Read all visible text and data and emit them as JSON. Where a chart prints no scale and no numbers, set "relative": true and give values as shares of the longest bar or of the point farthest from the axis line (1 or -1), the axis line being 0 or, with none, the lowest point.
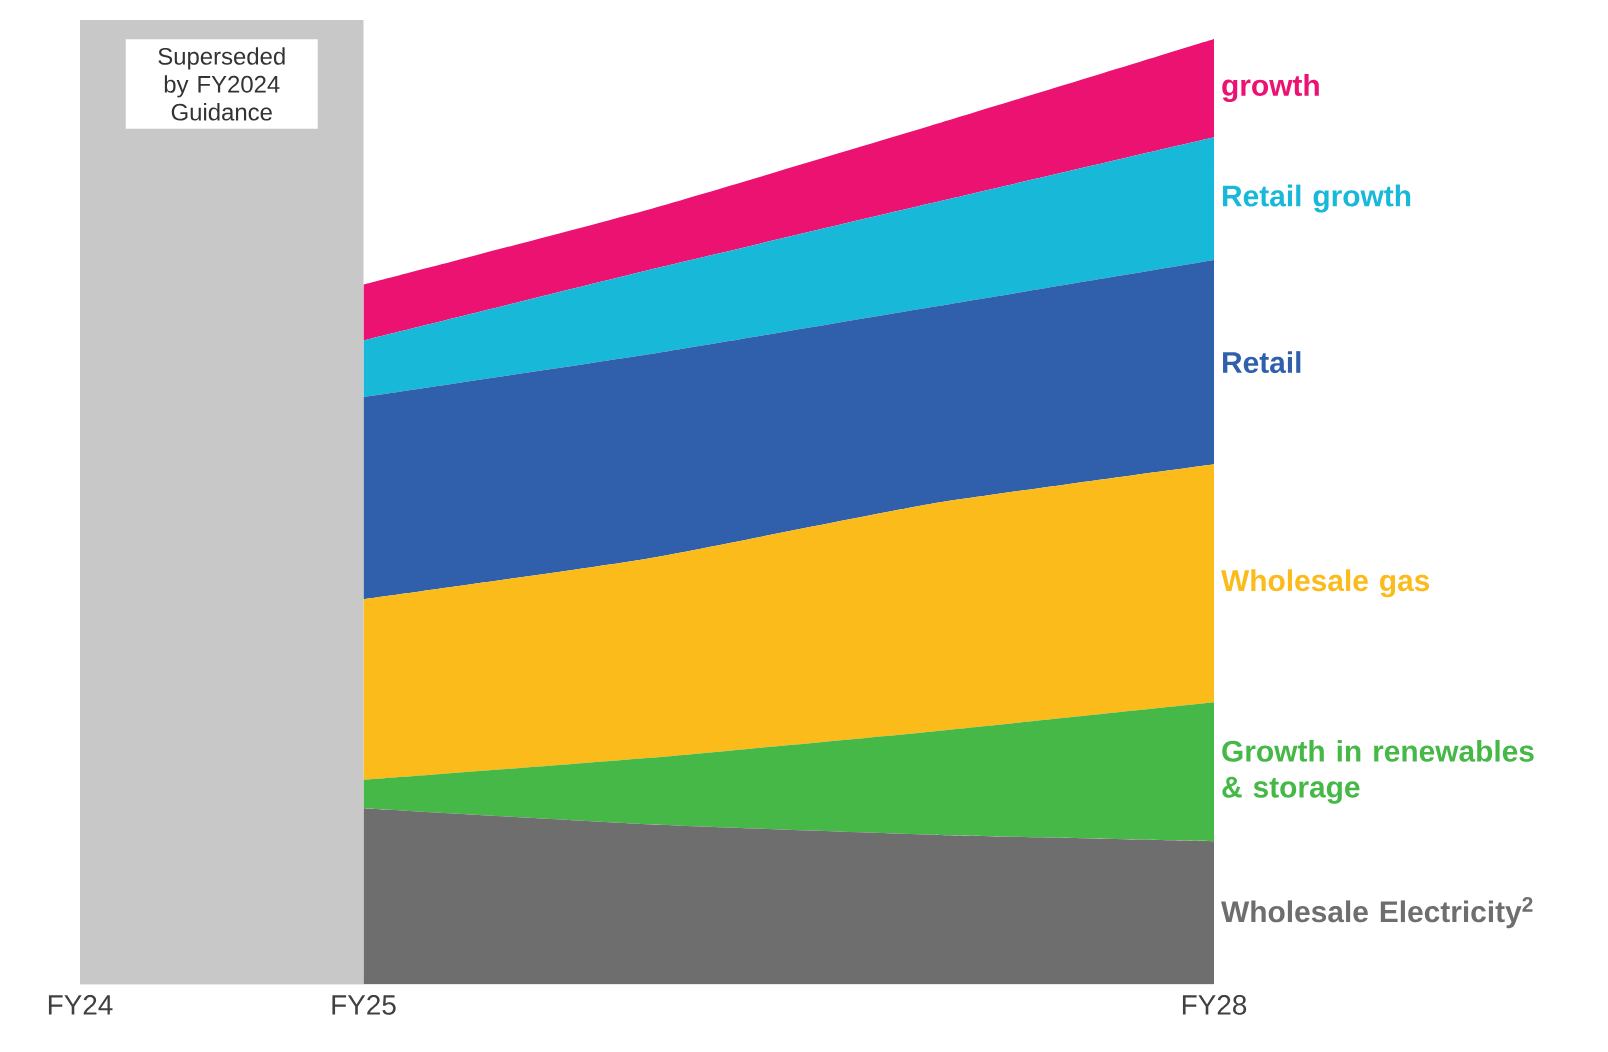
{
  "chart_data": {
    "type": "area",
    "stacked": true,
    "relative": true,
    "categories": [
      "FY24",
      "FY25",
      null,
      null,
      "FY28"
    ],
    "series": [
      {
        "name": "Wholesale Electricity$^{2}$",
        "color": "#6e6e6e",
        "values": [
          null,
          0.186,
          0.169,
          0.158,
          0.151
        ]
      },
      {
        "name": "Growth in renewables & storage",
        "color": "#46b848",
        "values": [
          null,
          0.03,
          0.07,
          0.109,
          0.147
        ]
      },
      {
        "name": "Wholesale gas",
        "color": "#fbbb1a",
        "values": [
          null,
          0.191,
          0.211,
          0.241,
          0.252
        ]
      },
      {
        "name": "Retail",
        "color": "#3060ab",
        "values": [
          null,
          0.214,
          0.216,
          0.208,
          0.216
        ]
      },
      {
        "name": "Retail growth",
        "color": "#17b8d8",
        "values": [
          null,
          0.06,
          0.089,
          0.11,
          0.13
        ]
      },
      {
        "name": "growth",
        "color": "#ec1272",
        "values": [
          null,
          0.059,
          0.064,
          0.082,
          0.104
        ]
      }
    ],
    "bands": [
      {
        "axis": "x",
        "from": "FY24",
        "to": "FY25",
        "label": "Superseded by FY2024 Guidance",
        "color": "#c8c8c8"
      }
    ]
  }
}
